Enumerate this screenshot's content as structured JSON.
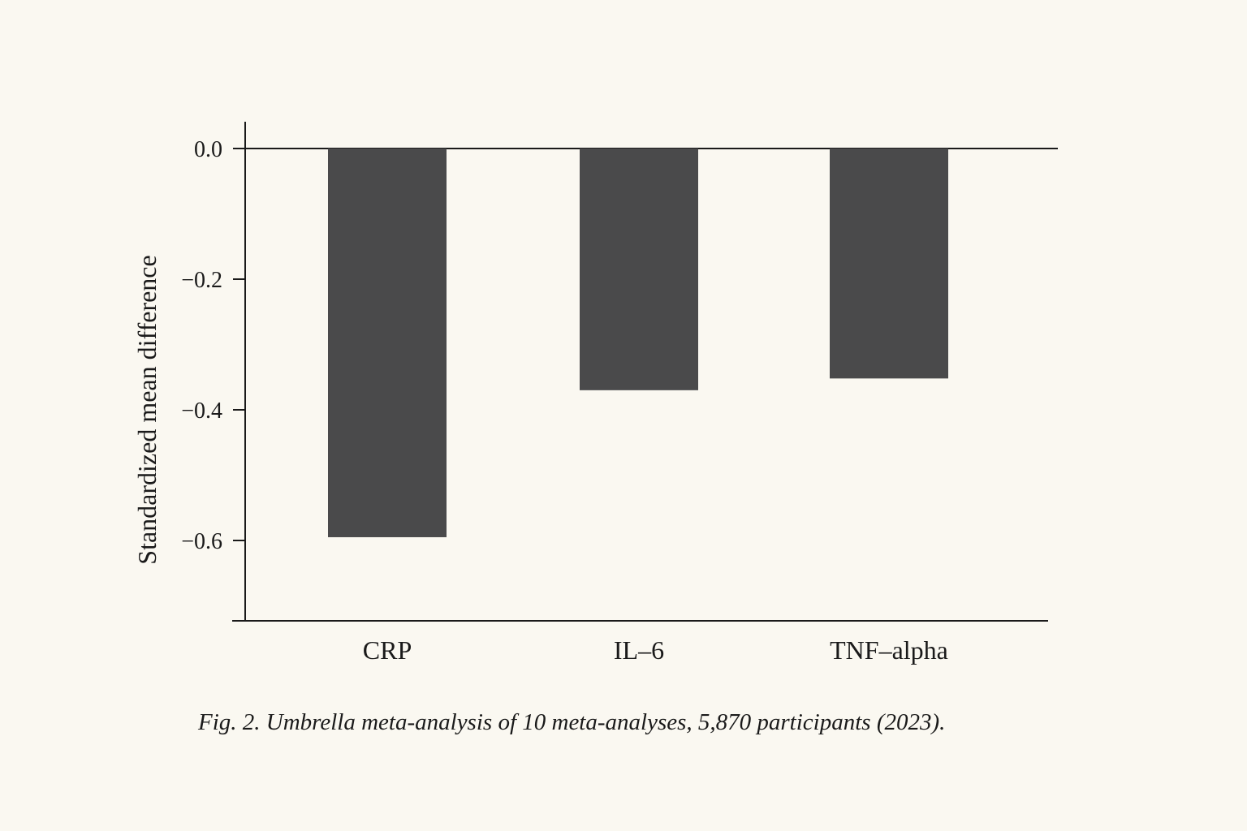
{
  "chart_data": {
    "type": "bar",
    "categories": [
      "CRP",
      "IL-6",
      "TNF-alpha"
    ],
    "category_labels": [
      "CRP",
      "IL–6",
      "TNF–alpha"
    ],
    "values": [
      -0.595,
      -0.37,
      -0.352
    ],
    "ylabel": "Standardized mean difference",
    "xlabel": "",
    "ylim": [
      -0.725,
      0.04
    ],
    "yticks": [
      0.0,
      -0.2,
      -0.4,
      -0.6
    ],
    "ytick_labels": [
      "0.0",
      "−0.2",
      "−0.4",
      "−0.6"
    ],
    "grid": false,
    "legend": "none",
    "bar_color": "#4a4a4b",
    "zero_line": true
  },
  "caption": "Fig. 2. Umbrella meta-analysis of 10 meta-analyses, 5,870 participants (2023)."
}
